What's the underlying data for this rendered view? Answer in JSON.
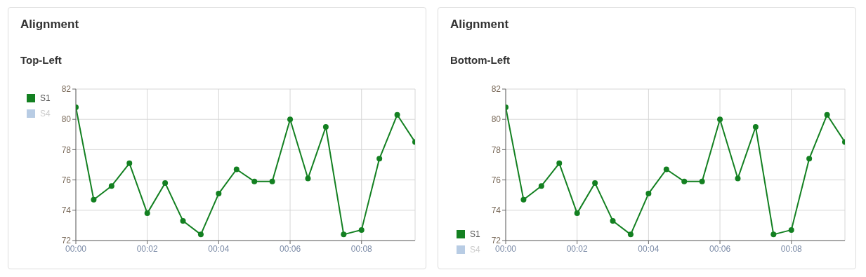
{
  "chart_data": [
    {
      "type": "line",
      "title": "Alignment",
      "subtitle": "Top-Left",
      "x": [
        0,
        0.5,
        1,
        1.5,
        2,
        2.5,
        3,
        3.5,
        4,
        4.5,
        5,
        5.5,
        6,
        6.5,
        7,
        7.5,
        8,
        8.5,
        9,
        9.5
      ],
      "series": [
        {
          "name": "S1",
          "color": "#138021",
          "values": [
            80.8,
            74.7,
            75.6,
            77.1,
            73.8,
            75.8,
            73.3,
            72.4,
            75.1,
            76.7,
            75.9,
            75.9,
            80.0,
            76.1,
            79.5,
            72.4,
            72.7,
            77.4,
            80.3,
            78.5
          ]
        },
        {
          "name": "S4",
          "color": "#b8cce4",
          "values": [
            null,
            null,
            null,
            null,
            null,
            null,
            null,
            null,
            null,
            null,
            null,
            null,
            null,
            null,
            null,
            null,
            null,
            null,
            null,
            null
          ]
        }
      ],
      "xlim": [
        0,
        9.5
      ],
      "xticks": [
        {
          "value": 0,
          "label": "00:00"
        },
        {
          "value": 2,
          "label": "00:02"
        },
        {
          "value": 4,
          "label": "00:04"
        },
        {
          "value": 6,
          "label": "00:06"
        },
        {
          "value": 8,
          "label": "00:08"
        }
      ],
      "ylim": [
        72,
        82
      ],
      "yticks": [
        72,
        74,
        76,
        78,
        80,
        82
      ],
      "grid": true,
      "legend": "top left",
      "marker": "circle",
      "line_style": "solid"
    },
    {
      "type": "line",
      "title": "Alignment",
      "subtitle": "Bottom-Left",
      "x": [
        0,
        0.5,
        1,
        1.5,
        2,
        2.5,
        3,
        3.5,
        4,
        4.5,
        5,
        5.5,
        6,
        6.5,
        7,
        7.5,
        8,
        8.5,
        9,
        9.5
      ],
      "series": [
        {
          "name": "S1",
          "color": "#138021",
          "values": [
            80.8,
            74.7,
            75.6,
            77.1,
            73.8,
            75.8,
            73.3,
            72.4,
            75.1,
            76.7,
            75.9,
            75.9,
            80.0,
            76.1,
            79.5,
            72.4,
            72.7,
            77.4,
            80.3,
            78.5
          ]
        },
        {
          "name": "S4",
          "color": "#b8cce4",
          "values": [
            null,
            null,
            null,
            null,
            null,
            null,
            null,
            null,
            null,
            null,
            null,
            null,
            null,
            null,
            null,
            null,
            null,
            null,
            null,
            null
          ]
        }
      ],
      "xlim": [
        0,
        9.5
      ],
      "xticks": [
        {
          "value": 0,
          "label": "00:00"
        },
        {
          "value": 2,
          "label": "00:02"
        },
        {
          "value": 4,
          "label": "00:04"
        },
        {
          "value": 6,
          "label": "00:06"
        },
        {
          "value": 8,
          "label": "00:08"
        }
      ],
      "ylim": [
        72,
        82
      ],
      "yticks": [
        72,
        74,
        76,
        78,
        80,
        82
      ],
      "grid": true,
      "legend": "bottom left",
      "marker": "circle",
      "line_style": "solid"
    }
  ]
}
